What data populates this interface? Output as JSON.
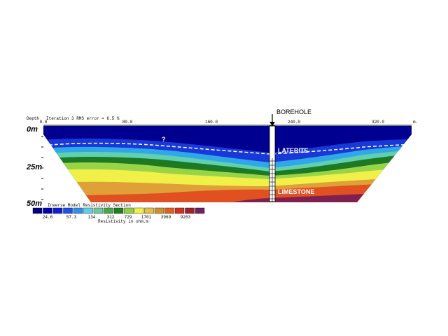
{
  "header": {
    "depth_label": "Depth",
    "iteration": "Iteration 3 RMS error = 6.5 %"
  },
  "x_axis": {
    "ticks": [
      "0.0",
      "80.0",
      "160.0",
      "240.0",
      "320.0"
    ],
    "unit": "m."
  },
  "depth_labels": [
    "0m",
    "25m",
    "50m"
  ],
  "annotations": {
    "borehole": "BOREHOLE",
    "question": "?",
    "laterite": "LATERITE",
    "limestone": "LIMESTONE"
  },
  "legend": {
    "title": "Inverse Model Resistivity Section",
    "labels": [
      "24.6",
      "57.3",
      "134",
      "312",
      "729",
      "1701",
      "3969",
      "9263"
    ],
    "caption": "Resistivity in ohm.m"
  }
}
